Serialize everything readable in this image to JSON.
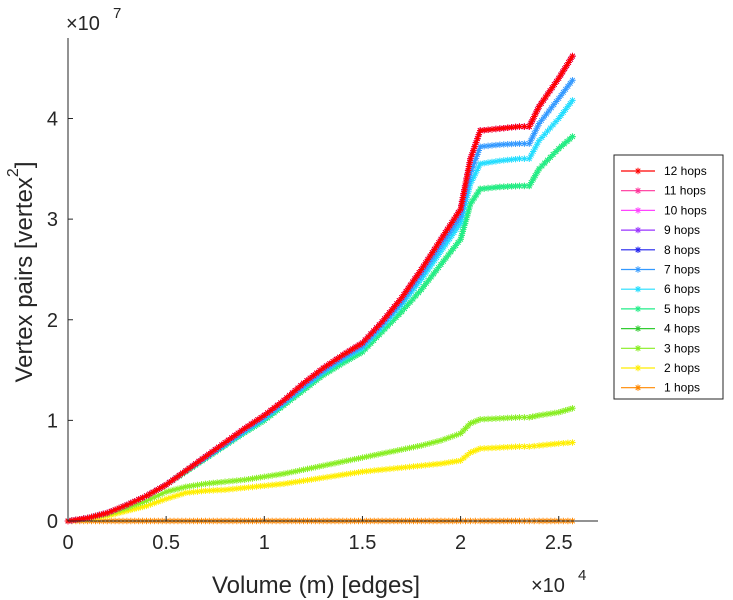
{
  "chart_data": {
    "type": "line",
    "title": "",
    "xlabel": "Volume (m) [edges]",
    "ylabel": "Vertex pairs [vertex",
    "ylabel_superscript": "2",
    "ylabel_close": "]",
    "x_multiplier_base": "×10",
    "x_multiplier_exp": "4",
    "y_multiplier_base": "×10",
    "y_multiplier_exp": "7",
    "xlim": [
      0,
      2.7
    ],
    "ylim": [
      0,
      4.8
    ],
    "xticks": [
      0,
      0.5,
      1,
      1.5,
      2,
      2.5
    ],
    "xtick_labels": [
      "0",
      "0.5",
      "1",
      "1.5",
      "2",
      "2.5"
    ],
    "yticks": [
      0,
      1,
      2,
      3,
      4
    ],
    "ytick_labels": [
      "0",
      "1",
      "2",
      "3",
      "4"
    ],
    "legend_position": "right",
    "x": [
      0.0,
      0.1,
      0.2,
      0.3,
      0.4,
      0.5,
      0.6,
      0.7,
      0.8,
      0.9,
      1.0,
      1.1,
      1.2,
      1.3,
      1.4,
      1.5,
      1.6,
      1.7,
      1.8,
      1.9,
      2.0,
      2.05,
      2.1,
      2.2,
      2.3,
      2.35,
      2.4,
      2.5,
      2.57
    ],
    "series": [
      {
        "name": "12 hops",
        "color": "#ff0000",
        "values": [
          0.0,
          0.03,
          0.08,
          0.16,
          0.25,
          0.36,
          0.5,
          0.64,
          0.78,
          0.92,
          1.05,
          1.2,
          1.37,
          1.52,
          1.65,
          1.77,
          1.98,
          2.22,
          2.5,
          2.8,
          3.1,
          3.6,
          3.88,
          3.9,
          3.92,
          3.92,
          4.12,
          4.4,
          4.62
        ]
      },
      {
        "name": "11 hops",
        "color": "#ff3399",
        "values": [
          0.0,
          0.03,
          0.08,
          0.16,
          0.25,
          0.36,
          0.5,
          0.64,
          0.78,
          0.92,
          1.05,
          1.2,
          1.37,
          1.52,
          1.65,
          1.77,
          1.98,
          2.22,
          2.5,
          2.8,
          3.1,
          3.6,
          3.88,
          3.9,
          3.92,
          3.92,
          4.12,
          4.4,
          4.62
        ]
      },
      {
        "name": "10 hops",
        "color": "#ff44ff",
        "values": [
          0.0,
          0.03,
          0.08,
          0.16,
          0.25,
          0.36,
          0.5,
          0.64,
          0.78,
          0.92,
          1.05,
          1.2,
          1.37,
          1.52,
          1.65,
          1.77,
          1.98,
          2.22,
          2.5,
          2.8,
          3.1,
          3.6,
          3.88,
          3.9,
          3.92,
          3.92,
          4.12,
          4.4,
          4.62
        ]
      },
      {
        "name": "9 hops",
        "color": "#9933ff",
        "values": [
          0.0,
          0.03,
          0.08,
          0.16,
          0.25,
          0.36,
          0.5,
          0.64,
          0.78,
          0.92,
          1.05,
          1.2,
          1.37,
          1.52,
          1.65,
          1.77,
          1.98,
          2.22,
          2.5,
          2.8,
          3.1,
          3.6,
          3.88,
          3.9,
          3.92,
          3.92,
          4.12,
          4.4,
          4.62
        ]
      },
      {
        "name": "8 hops",
        "color": "#2222ee",
        "values": [
          0.0,
          0.03,
          0.08,
          0.16,
          0.25,
          0.36,
          0.5,
          0.64,
          0.78,
          0.92,
          1.05,
          1.2,
          1.37,
          1.52,
          1.65,
          1.77,
          1.98,
          2.22,
          2.5,
          2.8,
          3.1,
          3.6,
          3.88,
          3.9,
          3.92,
          3.92,
          4.12,
          4.4,
          4.62
        ]
      },
      {
        "name": "7 hops",
        "color": "#3399ff",
        "values": [
          0.0,
          0.03,
          0.08,
          0.16,
          0.25,
          0.36,
          0.5,
          0.63,
          0.76,
          0.9,
          1.03,
          1.18,
          1.34,
          1.49,
          1.62,
          1.74,
          1.95,
          2.18,
          2.45,
          2.74,
          3.03,
          3.45,
          3.72,
          3.74,
          3.75,
          3.75,
          3.95,
          4.2,
          4.38
        ]
      },
      {
        "name": "6 hops",
        "color": "#22ddff",
        "values": [
          0.0,
          0.03,
          0.08,
          0.16,
          0.25,
          0.36,
          0.5,
          0.63,
          0.76,
          0.89,
          1.02,
          1.17,
          1.33,
          1.48,
          1.61,
          1.72,
          1.93,
          2.15,
          2.4,
          2.68,
          2.96,
          3.35,
          3.55,
          3.58,
          3.6,
          3.6,
          3.78,
          4.0,
          4.18
        ]
      },
      {
        "name": "5 hops",
        "color": "#22ee88",
        "values": [
          0.0,
          0.03,
          0.08,
          0.16,
          0.25,
          0.36,
          0.49,
          0.62,
          0.75,
          0.88,
          1.0,
          1.15,
          1.3,
          1.45,
          1.57,
          1.68,
          1.88,
          2.08,
          2.3,
          2.55,
          2.8,
          3.15,
          3.3,
          3.32,
          3.33,
          3.33,
          3.5,
          3.7,
          3.82
        ]
      },
      {
        "name": "4 hops",
        "color": "#33cc33",
        "values": [
          0.0,
          0.03,
          0.08,
          0.16,
          0.25,
          0.36,
          0.49,
          0.62,
          0.75,
          0.88,
          1.0,
          1.15,
          1.3,
          1.45,
          1.57,
          1.68,
          1.88,
          2.08,
          2.3,
          2.55,
          2.8,
          3.15,
          3.3,
          3.32,
          3.33,
          3.33,
          3.5,
          3.7,
          3.82
        ]
      },
      {
        "name": "3 hops",
        "color": "#88ee22",
        "values": [
          0.0,
          0.03,
          0.07,
          0.13,
          0.2,
          0.29,
          0.34,
          0.37,
          0.39,
          0.41,
          0.44,
          0.47,
          0.51,
          0.55,
          0.59,
          0.63,
          0.67,
          0.71,
          0.75,
          0.8,
          0.87,
          0.97,
          1.01,
          1.02,
          1.03,
          1.03,
          1.05,
          1.08,
          1.12
        ]
      },
      {
        "name": "2 hops",
        "color": "#ffee00",
        "values": [
          0.0,
          0.02,
          0.05,
          0.1,
          0.15,
          0.22,
          0.28,
          0.3,
          0.31,
          0.33,
          0.35,
          0.37,
          0.4,
          0.43,
          0.46,
          0.49,
          0.51,
          0.53,
          0.55,
          0.57,
          0.6,
          0.68,
          0.72,
          0.73,
          0.74,
          0.74,
          0.75,
          0.77,
          0.78
        ]
      },
      {
        "name": "1 hops",
        "color": "#ff8800",
        "values": [
          0.0,
          0.0,
          0.0,
          0.0,
          0.0,
          0.0,
          0.0,
          0.0,
          0.0,
          0.0,
          0.0,
          0.0,
          0.0,
          0.0,
          0.0,
          0.0,
          0.0,
          0.0,
          0.0,
          0.0,
          0.0,
          0.0,
          0.0,
          0.0,
          0.0,
          0.0,
          0.0,
          0.0,
          0.0
        ]
      }
    ]
  }
}
